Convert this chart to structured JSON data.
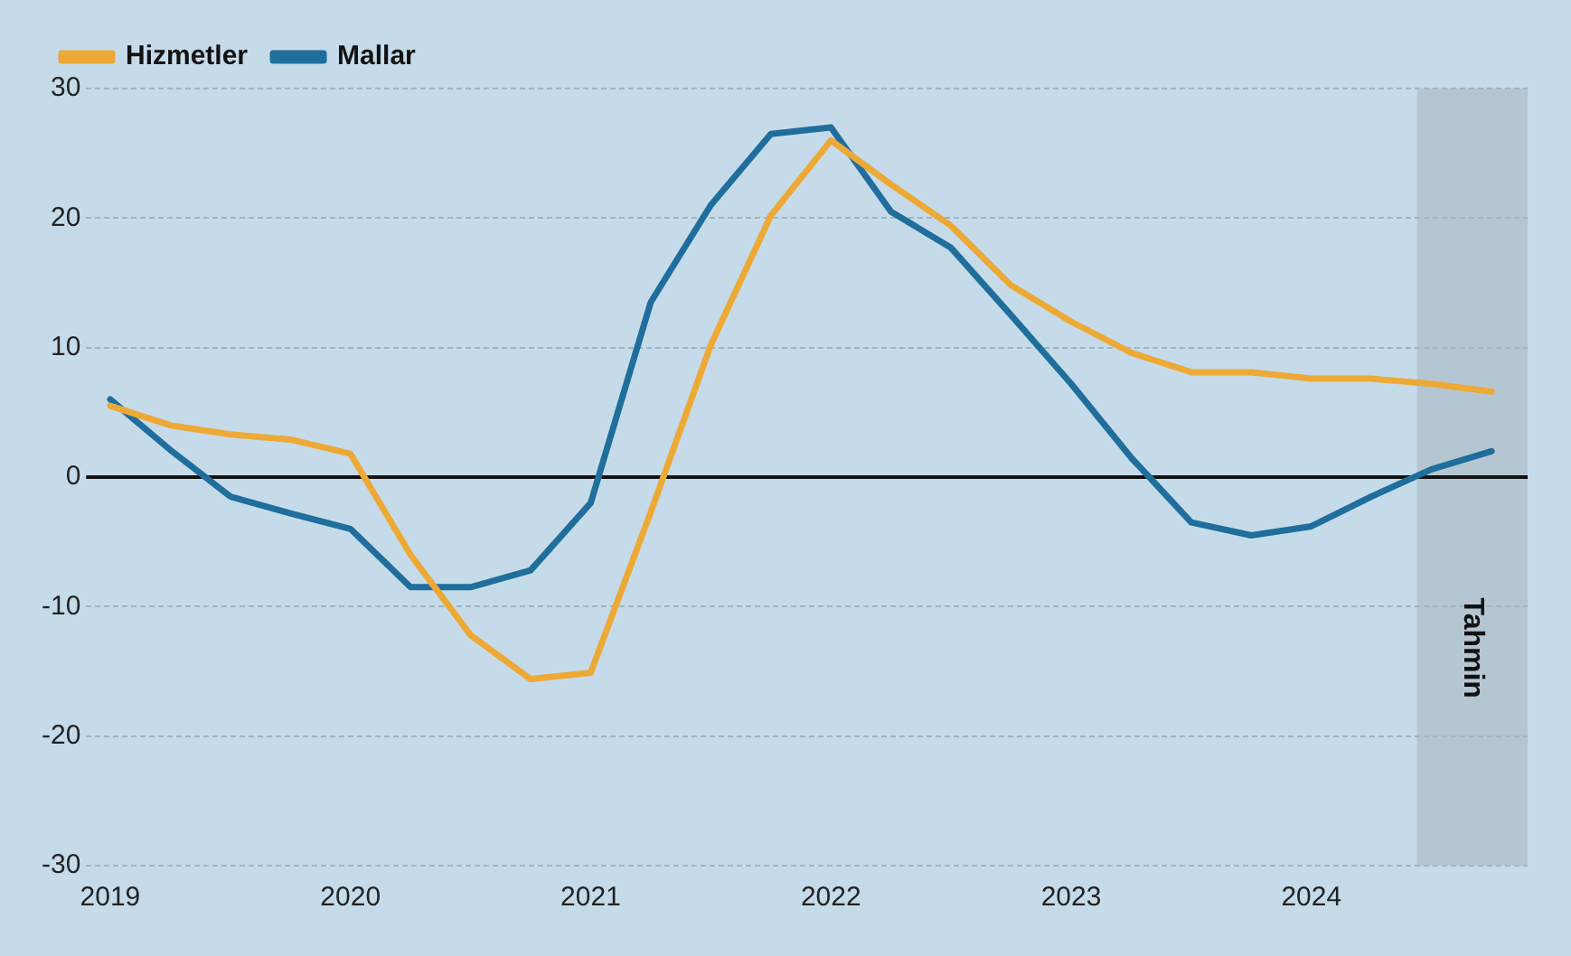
{
  "chart_data": {
    "type": "line",
    "x": [
      2019,
      2019.25,
      2019.5,
      2019.75,
      2020,
      2020.25,
      2020.5,
      2020.75,
      2021,
      2021.25,
      2021.5,
      2021.75,
      2022,
      2022.25,
      2022.5,
      2022.75,
      2023,
      2023.25,
      2023.5,
      2023.75,
      2024,
      2024.25,
      2024.5,
      2024.75
    ],
    "series": [
      {
        "name": "Hizmetler",
        "color": "#eda935",
        "values": [
          5.5,
          4.0,
          3.3,
          2.9,
          1.8,
          -6,
          -12.2,
          -15.6,
          -15.1,
          -2.7,
          10.2,
          20.2,
          26,
          22.6,
          19.4,
          14.8,
          12,
          9.6,
          8.1,
          8.1,
          7.6,
          7.6,
          7.2,
          6.6
        ]
      },
      {
        "name": "Mallar",
        "color": "#1f6e9c",
        "values": [
          6.0,
          2.1,
          -1.5,
          -2.8,
          -4.0,
          -8.5,
          -8.5,
          -7.2,
          -2.0,
          13.5,
          21,
          26.5,
          27,
          20.5,
          17.7,
          12.5,
          7.2,
          1.5,
          -3.5,
          -4.5,
          -3.8,
          -1.5,
          0.6,
          2.0
        ]
      }
    ],
    "xlim": [
      2018.9,
      2024.9
    ],
    "xticks": [
      2019,
      2020,
      2021,
      2022,
      2023,
      2024
    ],
    "ylim": [
      -30,
      30
    ],
    "yticks": [
      -30,
      -20,
      -10,
      0,
      10,
      20,
      30
    ],
    "ref_lines": [
      {
        "axis": "y",
        "value": 0,
        "color": "#111111"
      }
    ],
    "bands": [
      {
        "axis": "x",
        "from": 2024.44,
        "to": 2024.9,
        "label": "Tahmin",
        "color": "#a9b8c2"
      }
    ],
    "grid": "y",
    "legend": "top left",
    "marker": "none",
    "line_style": "solid"
  }
}
